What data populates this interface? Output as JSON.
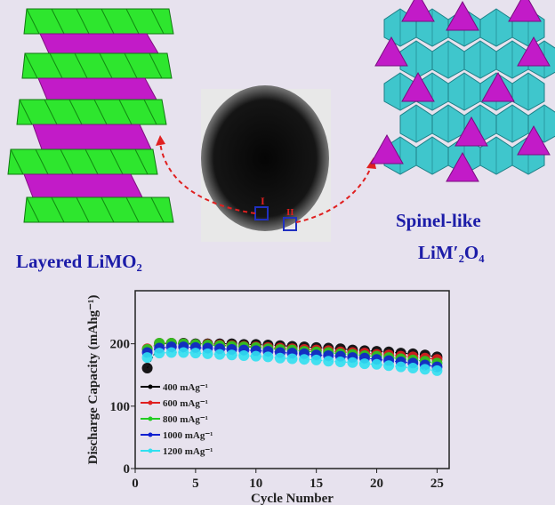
{
  "labels": {
    "layered": "Layered LiMO₂",
    "spinel_line1": "Spinel-like",
    "spinel_line2": "LiM′₂O₄",
    "region_1": "I",
    "region_2": "II"
  },
  "colors": {
    "background": "#e7e2ee",
    "label_text": "#1c1ca8",
    "layer_green": "#2ee62e",
    "layer_magenta": "#c21bc8",
    "spinel_cyan": "#3fc6cc",
    "arrow": "#e02020",
    "region_box": "#2030c0"
  },
  "chart_data": {
    "type": "line",
    "xlabel": "Cycle Number",
    "ylabel": "Discharge Capacity (mAhg⁻¹)",
    "xlim": [
      0,
      26
    ],
    "ylim": [
      0,
      285
    ],
    "xticks": [
      0,
      5,
      10,
      15,
      20,
      25
    ],
    "yticks": [
      0,
      100,
      200
    ],
    "grid": false,
    "legend_position": "left",
    "x": [
      1,
      2,
      3,
      4,
      5,
      6,
      7,
      8,
      9,
      10,
      11,
      12,
      13,
      14,
      15,
      16,
      17,
      18,
      19,
      20,
      21,
      22,
      23,
      24,
      25
    ],
    "series": [
      {
        "name": "400 mAg⁻¹",
        "color": "#000000",
        "values": [
          161,
          200,
          201,
          201,
          200,
          200,
          200,
          200,
          199,
          199,
          198,
          197,
          196,
          195,
          194,
          193,
          192,
          190,
          189,
          188,
          187,
          185,
          184,
          182,
          179
        ]
      },
      {
        "name": "600 mAg⁻¹",
        "color": "#e02020",
        "values": [
          192,
          201,
          201,
          200,
          199,
          199,
          198,
          197,
          196,
          195,
          194,
          193,
          192,
          191,
          190,
          189,
          187,
          186,
          185,
          183,
          182,
          180,
          179,
          177,
          175
        ]
      },
      {
        "name": "800 mAg⁻¹",
        "color": "#22cc22",
        "values": [
          191,
          201,
          201,
          200,
          199,
          198,
          197,
          196,
          195,
          194,
          192,
          191,
          190,
          188,
          187,
          186,
          184,
          183,
          181,
          180,
          178,
          176,
          174,
          172,
          169
        ]
      },
      {
        "name": "1000 mAg⁻¹",
        "color": "#1020d0",
        "values": [
          186,
          193,
          195,
          195,
          194,
          193,
          192,
          191,
          190,
          189,
          188,
          186,
          185,
          184,
          182,
          181,
          180,
          178,
          177,
          175,
          173,
          171,
          169,
          166,
          163
        ]
      },
      {
        "name": "1200 mAg⁻¹",
        "color": "#30e0f0",
        "values": [
          178,
          185,
          186,
          186,
          185,
          184,
          183,
          182,
          181,
          180,
          179,
          177,
          176,
          175,
          174,
          172,
          171,
          170,
          168,
          167,
          165,
          163,
          161,
          159,
          157
        ]
      }
    ]
  }
}
